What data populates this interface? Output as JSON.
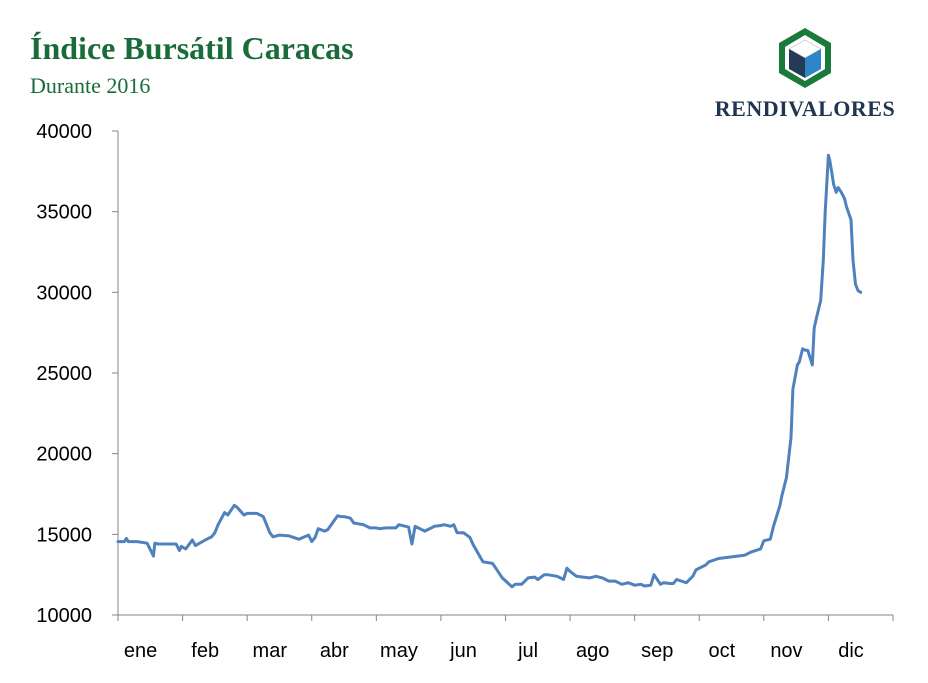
{
  "header": {
    "title": "Índice Bursátil Caracas",
    "subtitle": "Durante 2016"
  },
  "logo": {
    "text": "RENDIVALORES",
    "colors": {
      "hex_outer": "#1a7a3c",
      "face_dark": "#243a57",
      "face_blue": "#2e86c9",
      "face_light": "#ffffff"
    }
  },
  "chart_data": {
    "type": "line",
    "title": "Índice Bursátil Caracas",
    "subtitle": "Durante 2016",
    "xlabel": "",
    "ylabel": "",
    "ylim": [
      10000,
      40000
    ],
    "yticks": [
      10000,
      15000,
      20000,
      25000,
      30000,
      35000,
      40000
    ],
    "xticks": [
      "ene",
      "feb",
      "mar",
      "abr",
      "may",
      "jun",
      "jul",
      "ago",
      "sep",
      "oct",
      "nov",
      "dic"
    ],
    "grid": false,
    "legend": "none",
    "line_color": "#4f81bd",
    "series": [
      {
        "x": [
          0,
          0.1,
          0.13,
          0.16,
          0.3,
          0.45,
          0.55,
          0.57,
          0.62,
          0.9,
          0.95,
          0.98,
          1.05,
          1.15,
          1.2,
          1.35,
          1.45,
          1.5,
          1.55,
          1.65,
          1.7,
          1.8,
          1.85,
          1.95,
          2.0,
          2.15,
          2.25,
          2.35,
          2.4,
          2.5,
          2.65,
          2.8,
          2.95,
          3.0,
          3.05,
          3.1,
          3.2,
          3.25,
          3.4,
          3.45,
          3.5,
          3.6,
          3.65,
          3.8,
          3.9,
          4.0,
          4.05,
          4.15,
          4.3,
          4.35,
          4.5,
          4.55,
          4.6,
          4.75,
          4.8,
          4.9,
          5.0,
          5.05,
          5.15,
          5.2,
          5.25,
          5.35,
          5.45,
          5.5,
          5.65,
          5.8,
          5.95,
          6.1,
          6.15,
          6.25,
          6.35,
          6.45,
          6.5,
          6.6,
          6.65,
          6.8,
          6.9,
          6.95,
          7.0,
          7.1,
          7.2,
          7.3,
          7.4,
          7.5,
          7.6,
          7.7,
          7.8,
          7.9,
          8.0,
          8.1,
          8.15,
          8.25,
          8.3,
          8.4,
          8.45,
          8.55,
          8.6,
          8.65,
          8.8,
          8.9,
          8.95,
          9.1,
          9.15,
          9.3,
          9.5,
          9.7,
          9.8,
          9.95,
          10.0,
          10.1,
          10.15,
          10.25,
          10.28,
          10.35,
          10.42,
          10.45,
          10.52,
          10.55,
          10.6,
          10.65,
          10.68,
          10.75,
          10.78,
          10.82,
          10.88,
          10.92,
          10.95,
          11.0,
          11.02,
          11.05,
          11.08,
          11.12,
          11.15,
          11.2,
          11.25,
          11.28,
          11.35,
          11.38,
          11.42,
          11.46,
          11.5
        ],
        "values": [
          14550,
          14550,
          14750,
          14550,
          14550,
          14450,
          13650,
          14450,
          14400,
          14400,
          14000,
          14250,
          14100,
          14650,
          14300,
          14650,
          14850,
          15100,
          15600,
          16350,
          16200,
          16800,
          16650,
          16200,
          16300,
          16300,
          16100,
          15100,
          14850,
          14950,
          14900,
          14700,
          14950,
          14550,
          14800,
          15350,
          15200,
          15300,
          16150,
          16100,
          16100,
          16000,
          15700,
          15600,
          15400,
          15400,
          15350,
          15400,
          15400,
          15600,
          15450,
          14400,
          15500,
          15200,
          15300,
          15500,
          15550,
          15600,
          15500,
          15600,
          15100,
          15100,
          14800,
          14350,
          13300,
          13200,
          12300,
          11750,
          11900,
          11900,
          12300,
          12350,
          12200,
          12500,
          12500,
          12400,
          12200,
          12900,
          12700,
          12400,
          12350,
          12300,
          12400,
          12300,
          12100,
          12100,
          11900,
          12000,
          11850,
          11900,
          11800,
          11850,
          12500,
          11900,
          12000,
          11950,
          11950,
          12200,
          12000,
          12400,
          12800,
          13100,
          13300,
          13500,
          13600,
          13700,
          13900,
          14100,
          14600,
          14700,
          15500,
          16800,
          17400,
          18500,
          21000,
          24000,
          25500,
          25700,
          26500,
          26400,
          26400,
          25500,
          27800,
          28500,
          29500,
          32000,
          35000,
          38500,
          38200,
          37500,
          36700,
          36200,
          36500,
          36200,
          35800,
          35300,
          34500,
          32000,
          30500,
          30100,
          30000
        ]
      }
    ]
  }
}
